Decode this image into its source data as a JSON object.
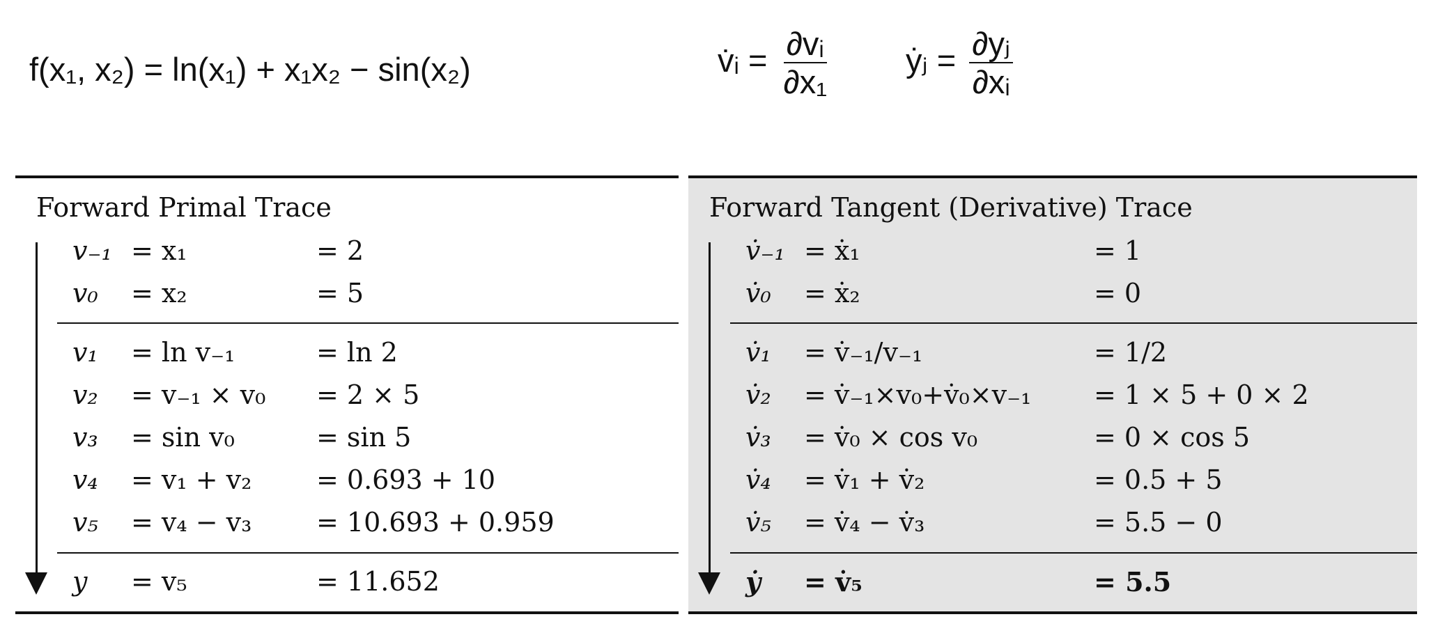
{
  "formulas": {
    "function": "f(x₁, x₂) = ln(x₁) + x₁x₂ − sin(x₂)",
    "vdot_lhs": "v̇ᵢ =",
    "vdot_num": "∂vᵢ",
    "vdot_den": "∂x₁",
    "ydot_lhs": "ẏⱼ =",
    "ydot_num": "∂yⱼ",
    "ydot_den": "∂xᵢ"
  },
  "primal": {
    "title": "Forward Primal Trace",
    "rows": [
      {
        "lhs": "v₋₁",
        "expr": "= x₁",
        "val": "= 2"
      },
      {
        "lhs": "v₀",
        "expr": "= x₂",
        "val": "= 5"
      },
      {
        "lhs": "v₁",
        "expr": "= ln v₋₁",
        "val": "= ln 2"
      },
      {
        "lhs": "v₂",
        "expr": "= v₋₁ × v₀",
        "val": "= 2 × 5"
      },
      {
        "lhs": "v₃",
        "expr": "= sin v₀",
        "val": "= sin 5"
      },
      {
        "lhs": "v₄",
        "expr": "= v₁ + v₂",
        "val": "= 0.693 + 10"
      },
      {
        "lhs": "v₅",
        "expr": "= v₄ − v₃",
        "val": "= 10.693 + 0.959"
      },
      {
        "lhs": "y",
        "expr": "= v₅",
        "val": "= 11.652"
      }
    ]
  },
  "tangent": {
    "title": "Forward Tangent (Derivative) Trace",
    "rows": [
      {
        "lhs": "v̇₋₁",
        "expr": "= ẋ₁",
        "val": "= 1"
      },
      {
        "lhs": "v̇₀",
        "expr": "= ẋ₂",
        "val": "= 0"
      },
      {
        "lhs": "v̇₁",
        "expr": "= v̇₋₁/v₋₁",
        "val": "= 1/2"
      },
      {
        "lhs": "v̇₂",
        "expr": "= v̇₋₁×v₀+v̇₀×v₋₁",
        "val": "= 1 × 5 + 0 × 2"
      },
      {
        "lhs": "v̇₃",
        "expr": "= v̇₀ × cos v₀",
        "val": "= 0 × cos 5"
      },
      {
        "lhs": "v̇₄",
        "expr": "= v̇₁ + v̇₂",
        "val": "= 0.5 + 5"
      },
      {
        "lhs": "v̇₅",
        "expr": "= v̇₄ − v̇₃",
        "val": "= 5.5 − 0"
      },
      {
        "lhs": "ẏ",
        "expr": "= v̇₅",
        "val": "= 5.5"
      }
    ]
  }
}
